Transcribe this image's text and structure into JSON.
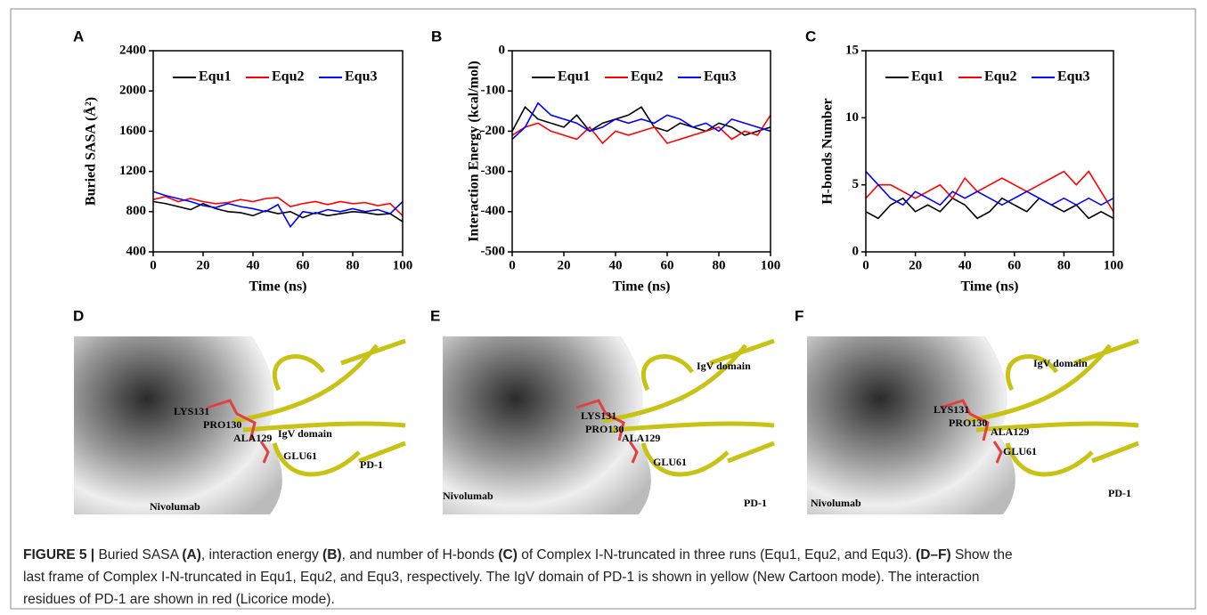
{
  "chart_data": [
    {
      "type": "line",
      "label": "A",
      "ylabel": "Buried SASA (Å²)",
      "xlabel": "Time (ns)",
      "x": [
        0,
        5,
        10,
        15,
        20,
        25,
        30,
        35,
        40,
        45,
        50,
        55,
        60,
        65,
        70,
        75,
        80,
        85,
        90,
        95,
        100
      ],
      "xlim": [
        0,
        100
      ],
      "xticks": [
        0,
        20,
        40,
        60,
        80,
        100
      ],
      "ylim": [
        400,
        2400
      ],
      "yticks": [
        400,
        800,
        1200,
        1600,
        2000,
        2400
      ],
      "legend": "top",
      "series": [
        {
          "name": "Equ1",
          "color": "#000000",
          "values": [
            900,
            880,
            850,
            820,
            880,
            830,
            800,
            790,
            760,
            810,
            780,
            800,
            740,
            790,
            760,
            780,
            800,
            790,
            770,
            780,
            700
          ]
        },
        {
          "name": "Equ2",
          "color": "#ff0000",
          "values": [
            920,
            950,
            900,
            930,
            900,
            880,
            890,
            920,
            900,
            930,
            940,
            850,
            880,
            900,
            870,
            900,
            880,
            890,
            860,
            880,
            760
          ]
        },
        {
          "name": "Equ3",
          "color": "#0000ff",
          "values": [
            1000,
            960,
            930,
            900,
            860,
            840,
            880,
            850,
            830,
            800,
            870,
            650,
            800,
            780,
            820,
            800,
            830,
            800,
            820,
            780,
            900
          ]
        }
      ]
    },
    {
      "type": "line",
      "label": "B",
      "ylabel": "Interaction Energy (kcal/mol)",
      "xlabel": "Time (ns)",
      "x": [
        0,
        5,
        10,
        15,
        20,
        25,
        30,
        35,
        40,
        45,
        50,
        55,
        60,
        65,
        70,
        75,
        80,
        85,
        90,
        95,
        100
      ],
      "xlim": [
        0,
        100
      ],
      "xticks": [
        0,
        20,
        40,
        60,
        80,
        100
      ],
      "ylim": [
        -500,
        0
      ],
      "yticks": [
        -500,
        -400,
        -300,
        -200,
        -100,
        0
      ],
      "legend": "top",
      "series": [
        {
          "name": "Equ1",
          "color": "#000000",
          "values": [
            -200,
            -140,
            -170,
            -180,
            -190,
            -160,
            -200,
            -180,
            -170,
            -160,
            -140,
            -190,
            -200,
            -180,
            -190,
            -200,
            -180,
            -190,
            -210,
            -200,
            -190
          ]
        },
        {
          "name": "Equ2",
          "color": "#ff0000",
          "values": [
            -210,
            -190,
            -180,
            -200,
            -210,
            -220,
            -190,
            -230,
            -200,
            -210,
            -200,
            -190,
            -230,
            -220,
            -210,
            -200,
            -190,
            -220,
            -200,
            -210,
            -160
          ]
        },
        {
          "name": "Equ3",
          "color": "#0000ff",
          "values": [
            -220,
            -190,
            -130,
            -160,
            -170,
            -180,
            -200,
            -190,
            -170,
            -180,
            -170,
            -180,
            -160,
            -170,
            -190,
            -180,
            -200,
            -170,
            -180,
            -190,
            -200
          ]
        }
      ]
    },
    {
      "type": "line",
      "label": "C",
      "ylabel": "H-bonds Number",
      "xlabel": "Time (ns)",
      "x": [
        0,
        5,
        10,
        15,
        20,
        25,
        30,
        35,
        40,
        45,
        50,
        55,
        60,
        65,
        70,
        75,
        80,
        85,
        90,
        95,
        100
      ],
      "xlim": [
        0,
        100
      ],
      "xticks": [
        0,
        20,
        40,
        60,
        80,
        100
      ],
      "ylim": [
        0,
        15
      ],
      "yticks": [
        0,
        5,
        10,
        15
      ],
      "legend": "top",
      "series": [
        {
          "name": "Equ1",
          "color": "#000000",
          "values": [
            3,
            2.5,
            3.5,
            4,
            3,
            3.5,
            3,
            4,
            3.5,
            2.5,
            3,
            4,
            3.5,
            3,
            4,
            3.5,
            3,
            3.5,
            2.5,
            3,
            2.5
          ]
        },
        {
          "name": "Equ2",
          "color": "#ff0000",
          "values": [
            4,
            5,
            5,
            4.5,
            4,
            4.5,
            5,
            4,
            5.5,
            4.5,
            5,
            5.5,
            5,
            4.5,
            5,
            5.5,
            6,
            5,
            6,
            4.5,
            3
          ]
        },
        {
          "name": "Equ3",
          "color": "#0000ff",
          "values": [
            6,
            5,
            4,
            3.5,
            4.5,
            4,
            3.5,
            4.5,
            4,
            4.5,
            4,
            3.5,
            4,
            4.5,
            4,
            3.5,
            4,
            3.5,
            4,
            3.5,
            4
          ]
        }
      ]
    }
  ],
  "panels": [
    {
      "label": "D",
      "annotations": [
        "LYS131",
        "PRO130",
        "ALA129",
        "IgV domain",
        "GLU61",
        "PD-1",
        "Nivolumab"
      ]
    },
    {
      "label": "E",
      "annotations": [
        "IgV domain",
        "LYS131",
        "PRO130",
        "ALA129",
        "GLU61",
        "Nivolumab",
        "PD-1"
      ]
    },
    {
      "label": "F",
      "annotations": [
        "IgV domain",
        "LYS131",
        "PRO130",
        "ALA129",
        "GLU61",
        "Nivolumab",
        "PD-1"
      ]
    }
  ],
  "caption": {
    "lines": [
      [
        {
          "text": "FIGURE 5 |",
          "bold": true
        },
        {
          "text": " Buried SASA "
        },
        {
          "text": "(A)",
          "bold": true
        },
        {
          "text": ", interaction energy "
        },
        {
          "text": "(B)",
          "bold": true
        },
        {
          "text": ", and number of H-bonds "
        },
        {
          "text": "(C)",
          "bold": true
        },
        {
          "text": " of Complex I-N-truncated in three runs (Equ1, Equ2, and Equ3). "
        },
        {
          "text": "(D–F)",
          "bold": true
        },
        {
          "text": " Show the"
        }
      ],
      [
        {
          "text": "last frame of Complex I-N-truncated in Equ1, Equ2, and Equ3, respectively. The IgV domain of PD-1 is shown in yellow (New Cartoon mode). The interaction"
        }
      ],
      [
        {
          "text": "residues of PD-1 are shown in red (Licorice mode)."
        }
      ]
    ]
  }
}
